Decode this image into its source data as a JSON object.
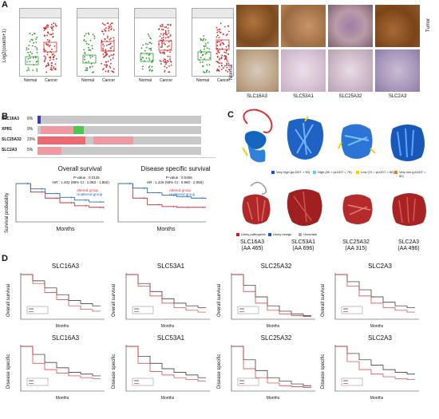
{
  "panels": {
    "A": "A",
    "B": "B",
    "C": "C",
    "D": "D"
  },
  "panel_a": {
    "genes": [
      "SLC16A3",
      "SLC53A1",
      "SLC25A32",
      "SLC2A3"
    ],
    "y_axis_label": "Log2(counts+1)",
    "box_group_labels": [
      "Normal",
      "Cancer"
    ],
    "ihc_row_labels": [
      "Tumor",
      "Normal"
    ],
    "ihc_gene_labels": [
      "SLC16A3",
      "SLC53A1",
      "SLC25A32",
      "SLC2A3"
    ],
    "colors": {
      "normal": "#2e9a2e",
      "cancer": "#d42b2b"
    }
  },
  "panel_b": {
    "oncoprint": [
      {
        "gene": "SLC16A3",
        "pct": "6%"
      },
      {
        "gene": "XPR1",
        "pct": "9%"
      },
      {
        "gene": "SLC25A32",
        "pct": "23%"
      },
      {
        "gene": "SLC2A3",
        "pct": "5%"
      }
    ],
    "km_plots": [
      {
        "title": "Overall survival",
        "pvalue": "P-value : 0.0125",
        "hr": "HR : 1.402 (95% CI : 1.083 - 1.850)",
        "legend": [
          "Altered group",
          "Unaltered group"
        ]
      },
      {
        "title": "Disease specific survival",
        "pvalue": "P-value : 0.0456",
        "hr": "HR : 1.425 (95% CI : 0.960 - 2.050)",
        "legend": [
          "Altered group",
          "Unaltered group"
        ]
      }
    ],
    "y_label": "Survival probability",
    "x_label": "Months"
  },
  "panel_c": {
    "plddt_legend": [
      "Very high (pLDDT > 90)",
      "High (90 > pLDDT > 70)",
      "Low (70 > pLDDT > 50)",
      "Very low (pLDDT < 50)"
    ],
    "patho_legend": [
      "Likely pathogenic",
      "Likely benign",
      "Uncertain"
    ],
    "structures": [
      {
        "name": "SLC16A3",
        "aa": "(AA 465)"
      },
      {
        "name": "SLC53A1",
        "aa": "(AA 696)"
      },
      {
        "name": "SLC25A32",
        "aa": "(AA 315)"
      },
      {
        "name": "SLC2A3",
        "aa": "(AA 496)"
      }
    ]
  },
  "panel_d": {
    "genes": [
      "SLC16A3",
      "SLC53A1",
      "SLC25A32",
      "SLC2A3"
    ],
    "row_labels": [
      "Overall survival",
      "Disease specific"
    ],
    "x_label": "Months"
  },
  "chart_data": [
    {
      "type": "scatter",
      "title": "Overall survival",
      "xlabel": "Months",
      "ylabel": "Survival probability",
      "ylim": [
        0,
        1
      ],
      "series": [
        {
          "name": "Altered group",
          "x": [
            0,
            20,
            40,
            60,
            80,
            100,
            120
          ],
          "values": [
            1.0,
            0.78,
            0.62,
            0.5,
            0.42,
            0.38,
            0.35
          ]
        },
        {
          "name": "Unaltered group",
          "x": [
            0,
            20,
            40,
            60,
            80,
            100,
            120
          ],
          "values": [
            1.0,
            0.86,
            0.74,
            0.64,
            0.57,
            0.52,
            0.5
          ]
        }
      ]
    },
    {
      "type": "scatter",
      "title": "Disease specific survival",
      "xlabel": "Months",
      "ylabel": "Survival probability",
      "ylim": [
        0,
        1
      ],
      "series": [
        {
          "name": "Altered group",
          "x": [
            0,
            20,
            40,
            60,
            80,
            100,
            120
          ],
          "values": [
            1.0,
            0.62,
            0.45,
            0.4,
            0.38,
            0.38,
            0.38
          ]
        },
        {
          "name": "Unaltered group",
          "x": [
            0,
            20,
            40,
            60,
            80,
            100,
            120
          ],
          "values": [
            1.0,
            0.88,
            0.76,
            0.7,
            0.66,
            0.62,
            0.6
          ]
        }
      ]
    }
  ]
}
